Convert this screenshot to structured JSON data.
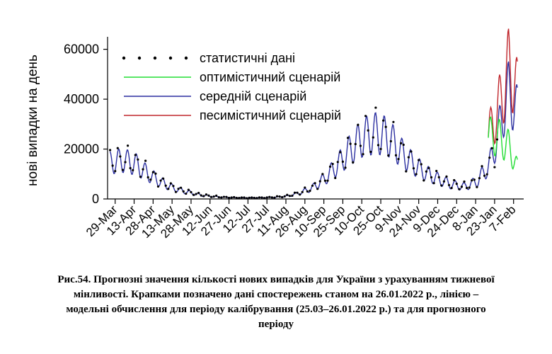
{
  "chart_data": {
    "type": "line",
    "ylabel": "нові випадки на день",
    "xlabel": "",
    "ylim": [
      0,
      65000
    ],
    "yticks": [
      0,
      20000,
      40000,
      60000
    ],
    "ytick_labels": [
      "0",
      "20000",
      "40000",
      "60000"
    ],
    "xlim": [
      "2021-03-23",
      "2022-02-15"
    ],
    "xticks": [
      "2021-03-29",
      "2021-04-13",
      "2021-04-28",
      "2021-05-13",
      "2021-05-28",
      "2021-06-12",
      "2021-06-27",
      "2021-07-12",
      "2021-07-27",
      "2021-08-11",
      "2021-08-26",
      "2021-09-10",
      "2021-09-25",
      "2021-10-10",
      "2021-10-25",
      "2021-11-09",
      "2021-11-24",
      "2021-12-09",
      "2021-12-24",
      "2022-01-08",
      "2022-01-23",
      "2022-02-07"
    ],
    "xtick_labels": [
      "29-Mar",
      "13-Apr",
      "28-Apr",
      "13-May",
      "28-May",
      "12-Jun",
      "27-Jun",
      "12-Jul",
      "27-Jul",
      "11-Aug",
      "26-Aug",
      "10-Sep",
      "25-Sep",
      "10-Oct",
      "25-Oct",
      "9-Nov",
      "24-Nov",
      "9-Dec",
      "24-Dec",
      "8-Jan",
      "23-Jan",
      "7-Feb"
    ],
    "grid": false,
    "legend_position": "top-left",
    "weekly_amplitude": 0.32,
    "series": [
      {
        "name": "статистичні дані",
        "style": "dots",
        "color": "#000000",
        "x": [
          "2021-03-25",
          "2021-04-04",
          "2021-04-14",
          "2021-04-24",
          "2021-05-04",
          "2021-05-14",
          "2021-05-24",
          "2021-06-03",
          "2021-06-13",
          "2021-06-23",
          "2021-07-03",
          "2021-07-13",
          "2021-07-23",
          "2021-08-02",
          "2021-08-12",
          "2021-08-22",
          "2021-09-01",
          "2021-09-11",
          "2021-09-21",
          "2021-10-01",
          "2021-10-11",
          "2021-10-21",
          "2021-10-31",
          "2021-11-10",
          "2021-11-20",
          "2021-11-30",
          "2021-12-10",
          "2021-12-20",
          "2021-12-30",
          "2022-01-09",
          "2022-01-19",
          "2022-01-26"
        ],
        "y": [
          15000,
          16000,
          14500,
          10500,
          7000,
          4500,
          3000,
          1800,
          1100,
          700,
          500,
          450,
          500,
          700,
          1200,
          2500,
          4500,
          8500,
          14000,
          20000,
          25000,
          26500,
          25000,
          19000,
          14000,
          10500,
          8000,
          6000,
          5000,
          7000,
          14000,
          24000
        ]
      },
      {
        "name": "оптимістичний сценарій",
        "style": "line",
        "color": "#22dd33",
        "x": [
          "2022-01-18",
          "2022-01-22",
          "2022-01-26",
          "2022-01-30",
          "2022-02-03",
          "2022-02-07",
          "2022-02-10"
        ],
        "y": [
          24500,
          25500,
          24500,
          23000,
          21000,
          17000,
          12000
        ]
      },
      {
        "name": "середній сценарій",
        "style": "line",
        "color": "#2b2fa0",
        "x": [
          "2021-03-25",
          "2021-04-04",
          "2021-04-14",
          "2021-04-24",
          "2021-05-04",
          "2021-05-14",
          "2021-05-24",
          "2021-06-03",
          "2021-06-13",
          "2021-06-23",
          "2021-07-03",
          "2021-07-13",
          "2021-07-23",
          "2021-08-02",
          "2021-08-12",
          "2021-08-22",
          "2021-09-01",
          "2021-09-11",
          "2021-09-21",
          "2021-10-01",
          "2021-10-11",
          "2021-10-21",
          "2021-10-31",
          "2021-11-10",
          "2021-11-20",
          "2021-11-30",
          "2021-12-10",
          "2021-12-20",
          "2021-12-30",
          "2022-01-09",
          "2022-01-19",
          "2022-01-26",
          "2022-01-30",
          "2022-02-03",
          "2022-02-07",
          "2022-02-10"
        ],
        "y": [
          14500,
          15500,
          14000,
          10000,
          6800,
          4300,
          2900,
          1700,
          1000,
          650,
          480,
          430,
          480,
          650,
          1100,
          2400,
          4400,
          8300,
          13800,
          19800,
          24800,
          26300,
          24800,
          18800,
          13800,
          10300,
          7800,
          5800,
          4900,
          6900,
          13800,
          26000,
          36000,
          42000,
          40000,
          34000
        ]
      },
      {
        "name": "песимістичний сценарій",
        "style": "line",
        "color": "#c0262c",
        "x": [
          "2022-01-18",
          "2022-01-22",
          "2022-01-26",
          "2022-01-30",
          "2022-02-03",
          "2022-02-07",
          "2022-02-10"
        ],
        "y": [
          25000,
          31000,
          36000,
          44000,
          52000,
          50000,
          42000
        ]
      }
    ]
  },
  "caption": {
    "line1": "Рис.54. Прогнозні значення кількості нових випадків для України з урахуванням тижневої",
    "line2": "мінливості. Крапками позначено дані спостережень станом на 26.01.2022 р., лінією –",
    "line3": "модельні обчислення для періоду калібрування (25.03–26.01.2022 р.) та для прогнозного",
    "line4": "періоду"
  }
}
